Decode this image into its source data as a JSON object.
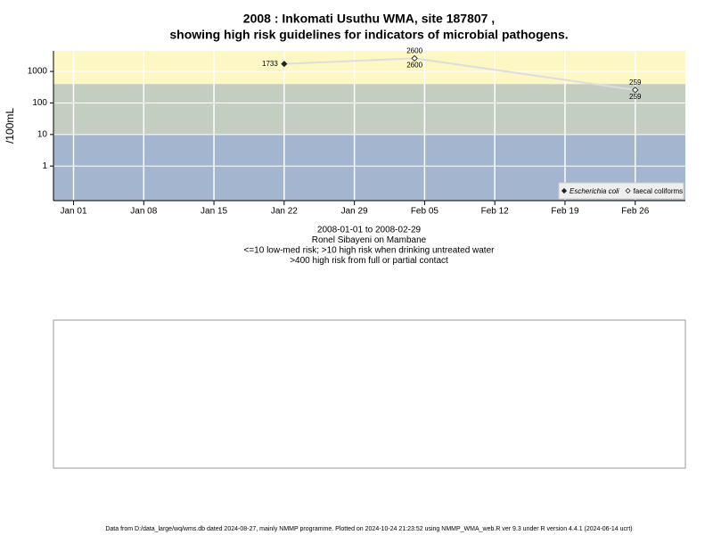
{
  "chart_data": {
    "type": "line",
    "title": "2008 : Inkomati Usuthu WMA, site 187807 ,",
    "subtitle": "showing high risk guidelines for indicators of microbial pathogens.",
    "y_label": "/100mL",
    "notes": [
      "2008-01-01 to 2008-02-29",
      "Ronel Sibayeni on Mambane",
      "<=10 low-med risk; >10 high risk when drinking untreated water",
      ">400 high risk from full or partial contact"
    ],
    "footer": "Data from D:/data_large/wq/wms.db dated 2024-08-27, mainly NMMP programme. Plotted on 2024-10-24 21:23:52 using NMMP_WMA_web.R ver 9.3 under R version 4.4.1 (2024-06-14 ucrt)",
    "x": [
      "2008-01-22",
      "2008-02-04",
      "2008-02-26"
    ],
    "series": [
      {
        "name": "Escherichia coli",
        "color": "#222222",
        "values": [
          1733,
          2600,
          259
        ]
      },
      {
        "name": "faecal coliforms",
        "color": "#ffffff",
        "values": [
          null,
          2600,
          259
        ]
      }
    ],
    "log_y": true,
    "ylim": [
      0.08,
      4500
    ],
    "yticks": [
      1,
      10,
      100,
      1000
    ],
    "xlim": [
      "2007-12-30",
      "2008-03-02"
    ],
    "xticks": [
      {
        "value": "2008-01-01",
        "label": "Jan 01"
      },
      {
        "value": "2008-01-08",
        "label": "Jan 08"
      },
      {
        "value": "2008-01-15",
        "label": "Jan 15"
      },
      {
        "value": "2008-01-22",
        "label": "Jan 22"
      },
      {
        "value": "2008-01-29",
        "label": "Jan 29"
      },
      {
        "value": "2008-02-05",
        "label": "Feb 05"
      },
      {
        "value": "2008-02-12",
        "label": "Feb 12"
      },
      {
        "value": "2008-02-19",
        "label": "Feb 19"
      },
      {
        "value": "2008-02-26",
        "label": "Feb 26"
      }
    ],
    "thresholds": [
      10,
      400
    ],
    "band_colors": [
      "#a3b5cf",
      "#c3cdc0",
      "#fdf7c4"
    ],
    "line_color": "#dddddd",
    "grid": true,
    "legend": "bottom-right"
  }
}
